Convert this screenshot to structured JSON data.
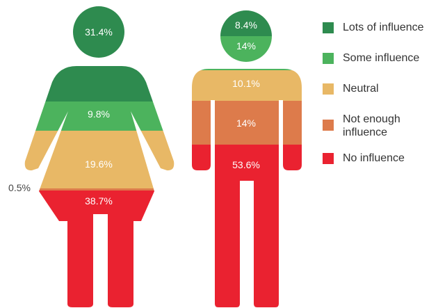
{
  "chart_data": {
    "type": "pictogram-stacked",
    "series": [
      {
        "name": "Lots of influence",
        "color": "#2e8b4f"
      },
      {
        "name": "Some influence",
        "color": "#4cb35d"
      },
      {
        "name": "Neutral",
        "color": "#e8b866"
      },
      {
        "name": "Not enough influence",
        "color": "#dd7b4b"
      },
      {
        "name": "No influence",
        "color": "#ea2230"
      }
    ],
    "figures": [
      {
        "shape": "woman-icon",
        "segments": [
          {
            "category": "Lots of influence",
            "value": 31.4,
            "label": "31.4%"
          },
          {
            "category": "Some influence",
            "value": 9.8,
            "label": "9.8%"
          },
          {
            "category": "Neutral",
            "value": 19.6,
            "label": "19.6%"
          },
          {
            "category": "Not enough influence",
            "value": 0.5,
            "label": "0.5%"
          },
          {
            "category": "No influence",
            "value": 38.7,
            "label": "38.7%"
          }
        ]
      },
      {
        "shape": "man-icon",
        "segments": [
          {
            "category": "Lots of influence",
            "value": 8.4,
            "label": "8.4%"
          },
          {
            "category": "Some influence",
            "value": 14,
            "label": "14%"
          },
          {
            "category": "Neutral",
            "value": 10.1,
            "label": "10.1%"
          },
          {
            "category": "Not enough influence",
            "value": 14,
            "label": "14%"
          },
          {
            "category": "No influence",
            "value": 53.6,
            "label": "53.6%"
          }
        ]
      }
    ]
  }
}
